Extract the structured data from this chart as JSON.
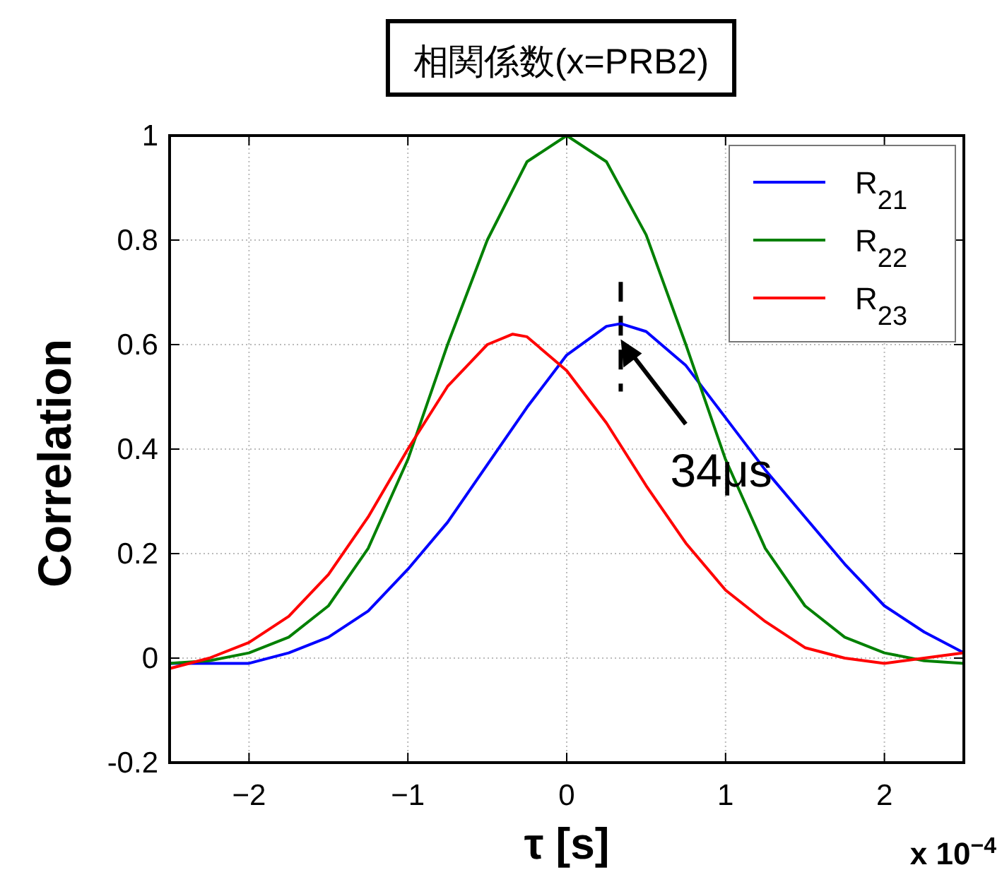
{
  "chart_data": {
    "type": "line",
    "title": "相関係数(x=PRB2)",
    "xlabel": "τ [s]",
    "ylabel": "Correlation",
    "xlim": [
      -2.5,
      2.5
    ],
    "xticks": [
      -2,
      -1,
      0,
      1,
      2
    ],
    "ylim": [
      -0.2,
      1
    ],
    "yticks": [
      -0.2,
      0,
      0.2,
      0.4,
      0.6,
      0.8,
      1
    ],
    "grid": true,
    "legend": "top right",
    "line_style": "solid",
    "marker": "none",
    "series": [
      {
        "name": "R$_{21}$",
        "color": "#0000ff",
        "x": [
          -2.5,
          -2.25,
          -2,
          -1.75,
          -1.5,
          -1.25,
          -1,
          -0.75,
          -0.5,
          -0.25,
          0,
          0.25,
          0.34,
          0.5,
          0.75,
          1,
          1.25,
          1.5,
          1.75,
          2,
          2.25,
          2.5
        ],
        "values": [
          -0.01,
          -0.01,
          -0.01,
          0.01,
          0.04,
          0.09,
          0.17,
          0.26,
          0.37,
          0.48,
          0.58,
          0.635,
          0.64,
          0.625,
          0.56,
          0.46,
          0.36,
          0.27,
          0.18,
          0.1,
          0.05,
          0.01
        ]
      },
      {
        "name": "R$_{22}$",
        "color": "#008000",
        "x": [
          -2.5,
          -2.25,
          -2,
          -1.75,
          -1.5,
          -1.25,
          -1,
          -0.75,
          -0.5,
          -0.25,
          0,
          0.25,
          0.5,
          0.75,
          1,
          1.25,
          1.5,
          1.75,
          2,
          2.25,
          2.5
        ],
        "values": [
          -0.01,
          -0.005,
          0.01,
          0.04,
          0.1,
          0.21,
          0.38,
          0.6,
          0.8,
          0.95,
          1.0,
          0.95,
          0.81,
          0.6,
          0.38,
          0.21,
          0.1,
          0.04,
          0.01,
          -0.005,
          -0.01
        ]
      },
      {
        "name": "R$_{23}$",
        "color": "#ff0000",
        "x": [
          -2.5,
          -2.25,
          -2,
          -1.75,
          -1.5,
          -1.25,
          -1,
          -0.75,
          -0.5,
          -0.34,
          -0.25,
          0,
          0.25,
          0.5,
          0.75,
          1,
          1.25,
          1.5,
          1.75,
          2,
          2.25,
          2.5
        ],
        "values": [
          -0.02,
          0.0,
          0.03,
          0.08,
          0.16,
          0.27,
          0.4,
          0.52,
          0.6,
          0.62,
          0.615,
          0.55,
          0.45,
          0.33,
          0.22,
          0.13,
          0.07,
          0.02,
          0.0,
          -0.01,
          0.0,
          0.01
        ]
      }
    ],
    "ref_lines": [
      {
        "axis": "x",
        "value": 0.34,
        "line_style": "dashed",
        "color": "#000000"
      }
    ],
    "annotations": [
      {
        "text": "34μs",
        "x": 0.34,
        "y": 0.61
      },
      "x 10$^{−4}$"
    ]
  }
}
